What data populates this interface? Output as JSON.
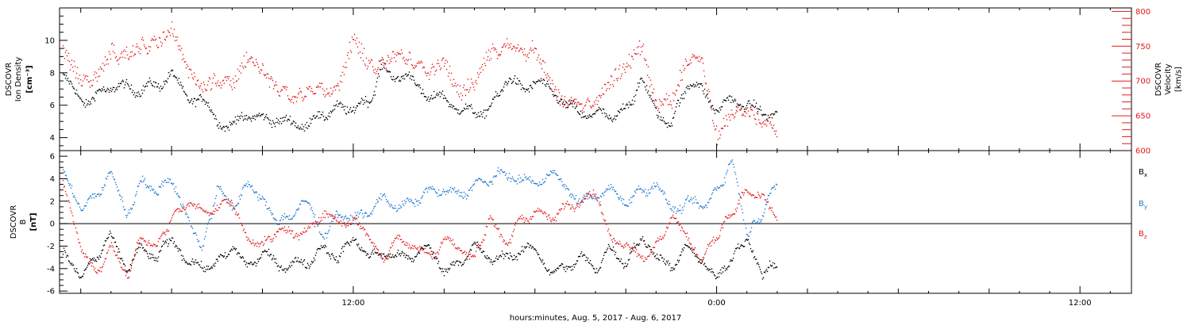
{
  "x_axis": {
    "label": "hours:minutes, Aug.  5, 2017 - Aug.  6, 2017",
    "tick_labels": [
      {
        "hour": 12,
        "label": "12:00"
      },
      {
        "hour": 24,
        "label": "0:00"
      },
      {
        "hour": 36,
        "label": "12:00"
      }
    ],
    "range_hours": [
      2.3,
      37.7
    ],
    "data_end_hour": 26.0
  },
  "colors": {
    "black": "#000000",
    "red": "#e41a1c",
    "blue": "#1f78d0"
  },
  "chart_data": [
    {
      "type": "scatter",
      "panel": "top",
      "ylabel_left": [
        "DSCOVR",
        "Ion Density",
        "[cm⁻³]"
      ],
      "ylabel_right": [
        "DSCOVR",
        "Velocity",
        "[km/s]"
      ],
      "ylim_left": [
        3.2,
        12
      ],
      "ylim_right": [
        600,
        805
      ],
      "left_ticks": [
        4,
        6,
        8,
        10
      ],
      "right_ticks": [
        600,
        650,
        700,
        750,
        800
      ],
      "series": [
        {
          "name": "Ion Density",
          "axis": "left",
          "color": "black",
          "x": [
            2.4,
            3.0,
            3.5,
            4.0,
            4.5,
            5.0,
            5.5,
            6.0,
            6.5,
            7.0,
            7.5,
            8.0,
            8.5,
            9.0,
            9.5,
            10.0,
            10.5,
            11.0,
            11.5,
            12.0,
            12.5,
            13.0,
            13.5,
            14.0,
            14.5,
            15.0,
            15.5,
            16.0,
            16.5,
            17.0,
            17.5,
            18.0,
            18.5,
            19.0,
            19.5,
            20.0,
            20.5,
            21.0,
            21.5,
            22.0,
            22.5,
            23.0,
            23.5,
            24.0,
            24.5,
            25.0,
            25.5,
            26.0
          ],
          "values": [
            7.8,
            6.2,
            6.6,
            7.2,
            7.1,
            7.0,
            7.3,
            7.8,
            6.6,
            6.3,
            5.0,
            4.8,
            5.5,
            5.1,
            5.2,
            4.8,
            4.9,
            5.5,
            5.8,
            5.9,
            6.2,
            8.5,
            7.7,
            7.6,
            6.5,
            6.5,
            5.8,
            5.5,
            5.8,
            7.5,
            7.2,
            7.3,
            7.2,
            6.0,
            5.5,
            5.5,
            5.3,
            5.8,
            7.5,
            5.5,
            5.0,
            7.3,
            7.0,
            5.8,
            6.4,
            6.0,
            5.5,
            5.6
          ]
        },
        {
          "name": "Velocity",
          "axis": "right",
          "color": "red",
          "x": [
            2.4,
            3.0,
            3.5,
            4.0,
            4.5,
            5.0,
            5.5,
            6.0,
            6.5,
            7.0,
            7.5,
            8.0,
            8.5,
            9.0,
            9.5,
            10.0,
            10.5,
            11.0,
            11.5,
            12.0,
            12.5,
            13.0,
            13.5,
            14.0,
            14.5,
            15.0,
            15.5,
            16.0,
            16.5,
            17.0,
            17.5,
            18.0,
            18.5,
            19.0,
            19.5,
            20.0,
            20.5,
            21.0,
            21.5,
            22.0,
            22.5,
            23.0,
            23.5,
            24.0,
            24.5,
            25.0,
            25.5,
            26.0
          ],
          "values": [
            745,
            700,
            705,
            745,
            735,
            750,
            755,
            775,
            720,
            690,
            705,
            695,
            735,
            715,
            690,
            678,
            685,
            690,
            690,
            765,
            720,
            725,
            740,
            725,
            715,
            730,
            680,
            700,
            740,
            745,
            740,
            745,
            700,
            665,
            665,
            672,
            700,
            720,
            755,
            668,
            668,
            730,
            730,
            620,
            655,
            660,
            640,
            632
          ]
        }
      ]
    },
    {
      "type": "scatter",
      "panel": "bottom",
      "ylabel_left": [
        "DSCOVR",
        "B",
        "[nT]"
      ],
      "ylim": [
        -6.2,
        6.5
      ],
      "ticks": [
        -6,
        -4,
        -2,
        0,
        2,
        4,
        6
      ],
      "zero_line": true,
      "legend_placement": "right",
      "series": [
        {
          "name": "Bx",
          "legend_main": "B",
          "legend_sub": "x",
          "color": "black",
          "x": [
            2.4,
            3.0,
            3.5,
            4.0,
            4.5,
            5.0,
            5.5,
            6.0,
            6.5,
            7.0,
            7.5,
            8.0,
            8.5,
            9.0,
            9.5,
            10.0,
            10.5,
            11.0,
            11.5,
            12.0,
            12.5,
            13.0,
            13.5,
            14.0,
            14.5,
            15.0,
            15.5,
            16.0,
            16.5,
            17.0,
            17.5,
            18.0,
            18.5,
            19.0,
            19.5,
            20.0,
            20.5,
            21.0,
            21.5,
            22.0,
            22.5,
            23.0,
            23.5,
            24.0,
            24.5,
            25.0,
            25.5,
            26.0
          ],
          "values": [
            -2.5,
            -4.5,
            -3.0,
            -1.0,
            -4.0,
            -2.0,
            -3.0,
            -1.0,
            -3.5,
            -3.8,
            -3.5,
            -2.0,
            -4.0,
            -2.5,
            -3.8,
            -3.5,
            -3.5,
            -2.0,
            -3.0,
            -1.0,
            -3.0,
            -2.5,
            -3.0,
            -2.8,
            -2.0,
            -4.0,
            -3.5,
            -2.0,
            -3.0,
            -3.0,
            -2.5,
            -2.0,
            -4.2,
            -4.0,
            -3.0,
            -4.0,
            -2.0,
            -3.5,
            -1.0,
            -3.0,
            -4.0,
            -2.0,
            -3.0,
            -5.0,
            -3.0,
            -1.0,
            -4.5,
            -3.5
          ]
        },
        {
          "name": "By",
          "legend_main": "B",
          "legend_sub": "y",
          "color": "blue",
          "x": [
            2.4,
            3.0,
            3.5,
            4.0,
            4.5,
            5.0,
            5.5,
            6.0,
            6.5,
            7.0,
            7.5,
            8.0,
            8.5,
            9.0,
            9.5,
            10.0,
            10.5,
            11.0,
            11.5,
            12.0,
            12.5,
            13.0,
            13.5,
            14.0,
            14.5,
            15.0,
            15.5,
            16.0,
            16.5,
            17.0,
            17.5,
            18.0,
            18.5,
            19.0,
            19.5,
            20.0,
            20.5,
            21.0,
            21.5,
            22.0,
            22.5,
            23.0,
            23.5,
            24.0,
            24.5,
            25.0,
            25.5,
            26.0
          ],
          "values": [
            5.0,
            1.5,
            2.5,
            4.5,
            0.5,
            4.0,
            3.0,
            4.0,
            1.0,
            -2.0,
            3.0,
            1.5,
            3.5,
            2.5,
            0.0,
            1.0,
            2.0,
            -1.0,
            1.0,
            0.5,
            1.0,
            2.5,
            1.5,
            2.0,
            3.0,
            3.0,
            2.5,
            3.5,
            4.0,
            4.5,
            4.0,
            3.5,
            4.5,
            3.5,
            2.0,
            2.5,
            3.0,
            2.0,
            3.0,
            3.5,
            1.0,
            2.0,
            1.5,
            3.0,
            5.5,
            -1.0,
            1.0,
            4.0
          ]
        },
        {
          "name": "Bz",
          "legend_main": "B",
          "legend_sub": "z",
          "color": "red",
          "x": [
            2.4,
            3.0,
            3.5,
            4.0,
            4.5,
            5.0,
            5.5,
            6.0,
            6.5,
            7.0,
            7.5,
            8.0,
            8.5,
            9.0,
            9.5,
            10.0,
            10.5,
            11.0,
            11.5,
            12.0,
            12.5,
            13.0,
            13.5,
            14.0,
            14.5,
            15.0,
            15.5,
            16.0,
            16.5,
            17.0,
            17.5,
            18.0,
            18.5,
            19.0,
            19.5,
            20.0,
            20.5,
            21.0,
            21.5,
            22.0,
            22.5,
            23.0,
            23.5,
            24.0,
            24.5,
            25.0,
            25.5,
            26.0
          ],
          "values": [
            3.5,
            -2.5,
            -4.5,
            -2.0,
            -4.8,
            -1.0,
            -2.0,
            0.5,
            2.0,
            1.0,
            1.5,
            2.0,
            -1.0,
            -2.0,
            -0.5,
            -1.0,
            -0.5,
            1.0,
            0.0,
            0.5,
            -1.5,
            -3.0,
            -1.0,
            -2.0,
            -3.0,
            -1.5,
            -2.0,
            -3.0,
            0.5,
            -2.0,
            0.5,
            1.0,
            0.5,
            1.5,
            2.0,
            3.0,
            -1.0,
            -2.0,
            -3.0,
            -2.0,
            0.5,
            -1.0,
            -3.0,
            -1.0,
            1.0,
            3.0,
            2.5,
            0.0
          ]
        }
      ]
    }
  ]
}
